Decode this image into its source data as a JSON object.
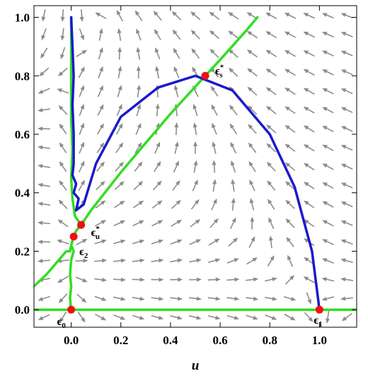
{
  "chart_data": {
    "type": "phase-portrait",
    "xlabel": "u",
    "ylabel": "",
    "xlim": [
      -0.15,
      1.15
    ],
    "ylim": [
      -0.06,
      1.04
    ],
    "grid": false,
    "x_ticks": [
      {
        "v": 0.0,
        "label": "0.0"
      },
      {
        "v": 0.2,
        "label": "0.2"
      },
      {
        "v": 0.4,
        "label": "0.4"
      },
      {
        "v": 0.6,
        "label": "0.6"
      },
      {
        "v": 0.8,
        "label": "0.8"
      },
      {
        "v": 1.0,
        "label": "1.0"
      }
    ],
    "y_ticks": [
      {
        "v": 0.0,
        "label": "0.0"
      },
      {
        "v": 0.2,
        "label": "0.2"
      },
      {
        "v": 0.4,
        "label": "0.4"
      },
      {
        "v": 0.6,
        "label": "0.6"
      },
      {
        "v": 0.8,
        "label": "0.8"
      },
      {
        "v": 1.0,
        "label": "1.0"
      }
    ],
    "colors": {
      "vector_field": "#8c8c8c",
      "green_curves": "#33dd22",
      "blue_curve": "#1a1acc",
      "points": "#ee1111",
      "frame": "#000000"
    },
    "series": [
      {
        "color": "green",
        "points": [
          [
            -0.15,
            0.0
          ],
          [
            0.2,
            0.0
          ],
          [
            0.6,
            0.0
          ],
          [
            1.0,
            0.0
          ],
          [
            1.15,
            0.0
          ]
        ]
      },
      {
        "color": "green",
        "points": [
          [
            0.0,
            0.0
          ],
          [
            -0.005,
            0.04
          ],
          [
            0.0,
            0.08
          ],
          [
            -0.005,
            0.12
          ],
          [
            0.0,
            0.17
          ],
          [
            0.01,
            0.2
          ],
          [
            0.0,
            0.22
          ],
          [
            0.01,
            0.25
          ]
        ]
      },
      {
        "color": "green",
        "points": [
          [
            -0.15,
            0.08
          ],
          [
            -0.1,
            0.12
          ],
          [
            -0.06,
            0.16
          ],
          [
            -0.03,
            0.19
          ],
          [
            -0.02,
            0.2
          ],
          [
            -0.005,
            0.2
          ],
          [
            0.0,
            0.22
          ],
          [
            0.01,
            0.25
          ]
        ]
      },
      {
        "color": "green",
        "points": [
          [
            0.01,
            0.25
          ],
          [
            0.02,
            0.27
          ],
          [
            0.04,
            0.29
          ],
          [
            0.08,
            0.34
          ],
          [
            0.2,
            0.47
          ],
          [
            0.4,
            0.67
          ],
          [
            0.54,
            0.8
          ],
          [
            0.6,
            0.855
          ],
          [
            0.7,
            0.95
          ],
          [
            0.75,
            1.0
          ]
        ]
      },
      {
        "color": "green",
        "points": [
          [
            0.04,
            0.29
          ],
          [
            0.015,
            0.32
          ],
          [
            0.005,
            0.38
          ],
          [
            0.0,
            0.45
          ],
          [
            0.005,
            0.55
          ],
          [
            0.0,
            0.65
          ],
          [
            0.0,
            0.8
          ],
          [
            0.0,
            0.9
          ],
          [
            0.0,
            1.0
          ]
        ]
      },
      {
        "color": "blue",
        "points": [
          [
            0.02,
            0.34
          ],
          [
            0.025,
            0.36
          ],
          [
            0.03,
            0.38
          ],
          [
            0.01,
            0.4
          ],
          [
            0.02,
            0.43
          ],
          [
            0.005,
            0.46
          ],
          [
            0.01,
            0.5
          ],
          [
            0.01,
            0.6
          ],
          [
            0.005,
            0.7
          ],
          [
            0.01,
            0.8
          ],
          [
            0.005,
            0.9
          ],
          [
            0.0,
            1.0
          ]
        ]
      },
      {
        "color": "blue",
        "points": [
          [
            0.02,
            0.34
          ],
          [
            0.05,
            0.36
          ],
          [
            0.1,
            0.5
          ],
          [
            0.2,
            0.66
          ],
          [
            0.35,
            0.76
          ],
          [
            0.5,
            0.8
          ],
          [
            0.65,
            0.75
          ],
          [
            0.8,
            0.6
          ],
          [
            0.9,
            0.42
          ],
          [
            0.97,
            0.2
          ],
          [
            1.0,
            0.0
          ]
        ]
      }
    ],
    "points": [
      {
        "x": 0.0,
        "y": 0.0,
        "label": "ϵ",
        "sub": "0",
        "sup": ""
      },
      {
        "x": 1.0,
        "y": 0.0,
        "label": "ϵ",
        "sub": "1",
        "sup": ""
      },
      {
        "x": 0.01,
        "y": 0.25,
        "label": "ϵ",
        "sub": "2",
        "sup": ""
      },
      {
        "x": 0.04,
        "y": 0.29,
        "label": "ϵ",
        "sub": "u",
        "sup": "*"
      },
      {
        "x": 0.54,
        "y": 0.8,
        "label": "ϵ",
        "sub": "s",
        "sup": "*"
      }
    ]
  }
}
